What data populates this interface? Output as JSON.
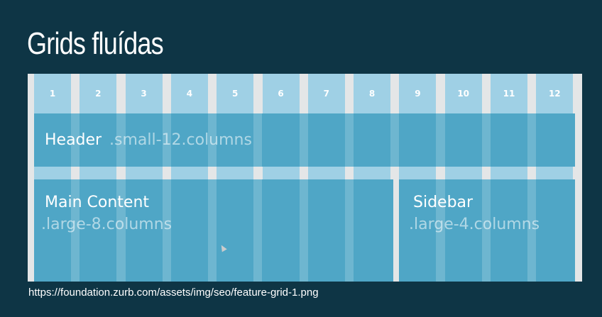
{
  "slide": {
    "title": "Grids fluídas",
    "source_url": "https://foundation.zurb.com/assets/img/seo/feature-grid-1.png"
  },
  "grid": {
    "columns": [
      "1",
      "2",
      "3",
      "4",
      "5",
      "6",
      "7",
      "8",
      "9",
      "10",
      "11",
      "12"
    ],
    "colors": {
      "frame": "#e4e6e7",
      "column": "#9fd0e5",
      "block": "#4fa6c6",
      "background": "#0e3545"
    }
  },
  "header_block": {
    "label": "Header",
    "class_name": ".small-12.columns"
  },
  "main_block": {
    "label": "Main Content",
    "class_name": ".large-8.columns"
  },
  "sidebar_block": {
    "label": "Sidebar",
    "class_name": ".large-4.columns"
  }
}
